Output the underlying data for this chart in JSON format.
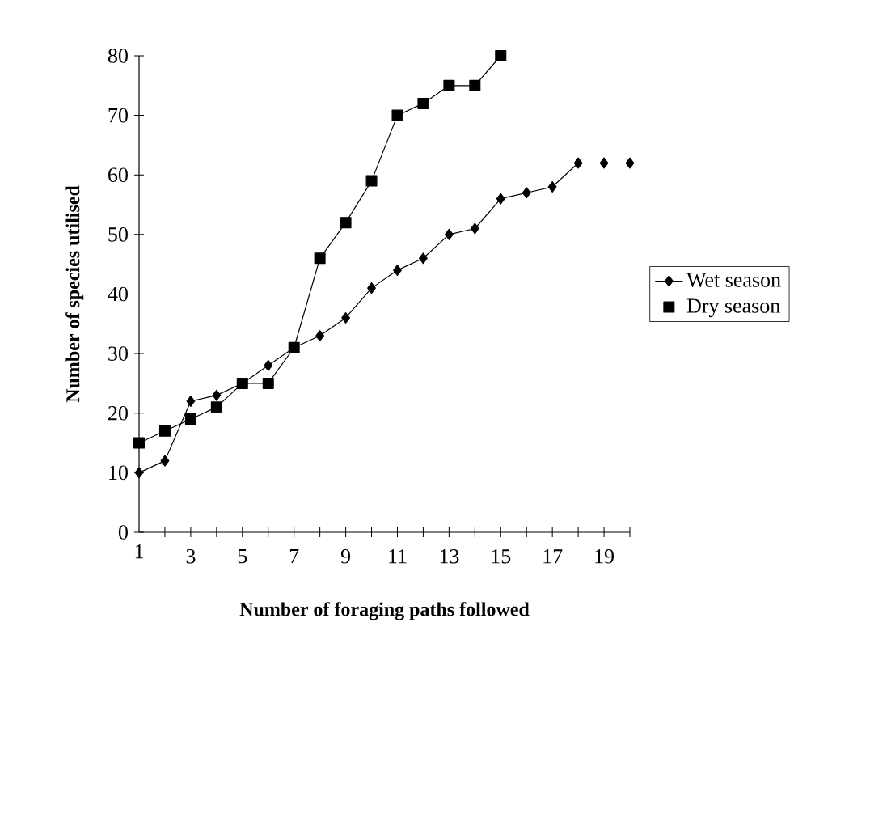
{
  "chart_data": {
    "type": "line",
    "xlabel": "Number of foraging paths followed",
    "ylabel": "Number of species utilised",
    "categories": [
      "1",
      null,
      "3",
      null,
      "5",
      null,
      "7",
      null,
      "9",
      null,
      "11",
      null,
      "13",
      null,
      "15",
      null,
      "17",
      null,
      "19",
      null
    ],
    "series": [
      {
        "name": "Wet season",
        "color": "#000000",
        "marker": "diamond",
        "values": [
          10,
          12,
          22,
          23,
          25,
          28,
          31,
          33,
          36,
          41,
          44,
          46,
          50,
          51,
          56,
          57,
          58,
          62,
          62,
          62
        ]
      },
      {
        "name": "Dry season",
        "color": "#000000",
        "marker": "square",
        "values": [
          15,
          17,
          19,
          21,
          25,
          25,
          31,
          46,
          52,
          59,
          70,
          72,
          75,
          75,
          80,
          null,
          null,
          null,
          null,
          null
        ]
      }
    ],
    "ylim": [
      0,
      80
    ],
    "yticks": [
      0,
      10,
      20,
      30,
      40,
      50,
      60,
      70,
      80
    ],
    "legend": "right",
    "grid": false,
    "line_style": "solid"
  }
}
